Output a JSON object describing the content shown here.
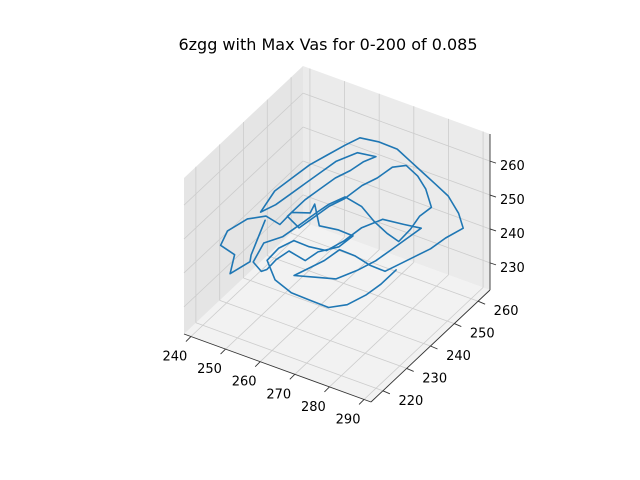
{
  "chart_data": {
    "type": "line",
    "projection": "3d",
    "title": "6zgg with Max Vas for 0-200 of 0.085",
    "xlabel": "",
    "ylabel": "",
    "zlabel": "",
    "xlim": [
      238,
      292
    ],
    "ylim": [
      215,
      265
    ],
    "zlim": [
      222,
      268
    ],
    "x_ticks": [
      "240",
      "250",
      "260",
      "270",
      "280",
      "290"
    ],
    "y_ticks": [
      "220",
      "230",
      "240",
      "250",
      "260"
    ],
    "z_ticks": [
      "230",
      "240",
      "250",
      "260"
    ],
    "grid": true,
    "pane_color": "#f2f2f2",
    "series": [
      {
        "color": "#1f77b4",
        "points": [
          [
            247,
            236,
            245
          ],
          [
            245,
            233,
            236
          ],
          [
            244,
            234,
            233
          ],
          [
            241,
            230,
            231
          ],
          [
            243,
            229,
            238
          ],
          [
            241,
            226,
            242
          ],
          [
            243,
            226,
            247
          ],
          [
            246,
            230,
            249
          ],
          [
            250,
            232,
            250
          ],
          [
            254,
            232,
            249
          ],
          [
            256,
            234,
            252
          ],
          [
            260,
            236,
            252
          ],
          [
            262,
            235,
            256
          ],
          [
            264,
            234,
            251
          ],
          [
            268,
            236,
            250
          ],
          [
            271,
            238,
            248
          ],
          [
            269,
            235,
            246
          ],
          [
            265,
            232,
            245
          ],
          [
            262,
            231,
            242
          ],
          [
            258,
            230,
            244
          ],
          [
            255,
            229,
            241
          ],
          [
            253,
            228,
            238
          ],
          [
            250,
            230,
            235
          ],
          [
            247,
            231,
            236
          ],
          [
            248,
            234,
            240
          ],
          [
            252,
            236,
            242
          ],
          [
            256,
            238,
            246
          ],
          [
            259,
            240,
            249
          ],
          [
            262,
            241,
            252
          ],
          [
            266,
            242,
            255
          ],
          [
            270,
            243,
            253
          ],
          [
            273,
            244,
            249
          ],
          [
            276,
            245,
            246
          ],
          [
            278,
            247,
            243
          ],
          [
            280,
            249,
            246
          ],
          [
            282,
            250,
            250
          ],
          [
            284,
            252,
            252
          ],
          [
            281,
            254,
            255
          ],
          [
            278,
            255,
            257
          ],
          [
            274,
            256,
            258
          ],
          [
            270,
            256,
            256
          ],
          [
            267,
            254,
            253
          ],
          [
            264,
            252,
            251
          ],
          [
            261,
            249,
            248
          ],
          [
            258,
            247,
            246
          ],
          [
            255,
            245,
            243
          ],
          [
            252,
            243,
            240
          ],
          [
            250,
            241,
            244
          ],
          [
            253,
            244,
            248
          ],
          [
            256,
            246,
            251
          ],
          [
            259,
            248,
            254
          ],
          [
            262,
            250,
            256
          ],
          [
            265,
            251,
            259
          ],
          [
            268,
            252,
            261
          ],
          [
            264,
            250,
            262
          ],
          [
            260,
            247,
            260
          ],
          [
            257,
            245,
            257
          ],
          [
            254,
            243,
            254
          ],
          [
            251,
            241,
            251
          ],
          [
            248,
            239,
            248
          ],
          [
            245,
            237,
            246
          ],
          [
            247,
            240,
            251
          ],
          [
            250,
            243,
            254
          ],
          [
            253,
            246,
            257
          ],
          [
            256,
            249,
            259
          ],
          [
            259,
            252,
            261
          ],
          [
            262,
            254,
            263
          ],
          [
            266,
            256,
            262
          ],
          [
            270,
            258,
            260
          ],
          [
            273,
            259,
            257
          ],
          [
            276,
            260,
            254
          ],
          [
            279,
            261,
            251
          ],
          [
            282,
            262,
            248
          ],
          [
            285,
            262,
            244
          ],
          [
            287,
            261,
            241
          ],
          [
            284,
            258,
            239
          ],
          [
            281,
            256,
            236
          ],
          [
            278,
            254,
            234
          ],
          [
            275,
            252,
            232
          ],
          [
            272,
            250,
            230
          ],
          [
            269,
            248,
            232
          ],
          [
            266,
            246,
            235
          ],
          [
            263,
            244,
            237
          ],
          [
            260,
            242,
            234
          ],
          [
            257,
            240,
            232
          ],
          [
            254,
            238,
            230
          ],
          [
            258,
            241,
            229
          ],
          [
            262,
            244,
            228
          ],
          [
            266,
            247,
            230
          ],
          [
            270,
            249,
            233
          ],
          [
            273,
            251,
            236
          ],
          [
            276,
            253,
            239
          ],
          [
            279,
            255,
            242
          ],
          [
            276,
            252,
            244
          ],
          [
            272,
            249,
            246
          ],
          [
            268,
            246,
            244
          ],
          [
            265,
            243,
            241
          ],
          [
            262,
            240,
            239
          ],
          [
            259,
            237,
            241
          ],
          [
            256,
            235,
            243
          ],
          [
            253,
            233,
            241
          ],
          [
            251,
            231,
            238
          ],
          [
            254,
            230,
            234
          ],
          [
            258,
            231,
            231
          ],
          [
            262,
            233,
            229
          ],
          [
            266,
            235,
            227
          ],
          [
            270,
            237,
            228
          ],
          [
            274,
            239,
            231
          ],
          [
            277,
            241,
            234
          ],
          [
            280,
            243,
            238
          ]
        ]
      }
    ]
  }
}
